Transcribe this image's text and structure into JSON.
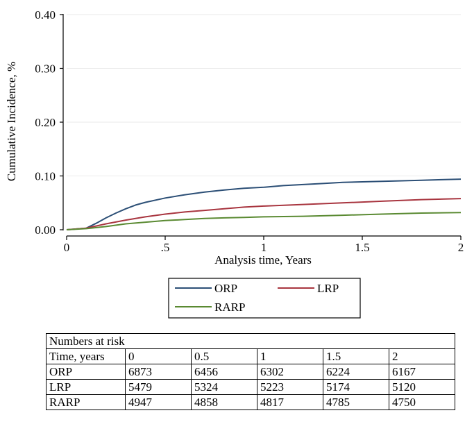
{
  "chart_data": {
    "type": "line",
    "ylabel": "Cumulative Incidence, %",
    "xlabel": "Analysis time, Years",
    "xlim": [
      0,
      2
    ],
    "ylim": [
      0,
      0.4
    ],
    "x_ticks": [
      0,
      0.5,
      1,
      1.5,
      2
    ],
    "x_tick_labels": [
      "0",
      ".5",
      "1",
      "1.5",
      "2"
    ],
    "y_ticks": [
      0,
      0.1,
      0.2,
      0.3,
      0.4
    ],
    "y_tick_labels": [
      "0.00",
      "0.10",
      "0.20",
      "0.30",
      "0.40"
    ],
    "grid": "horizontal",
    "legend_position": "bottom",
    "series": [
      {
        "name": "ORP",
        "color": "#2c4f76",
        "x": [
          0,
          0.1,
          0.15,
          0.2,
          0.25,
          0.3,
          0.35,
          0.4,
          0.5,
          0.6,
          0.7,
          0.8,
          0.9,
          1.0,
          1.1,
          1.2,
          1.3,
          1.4,
          1.5,
          1.6,
          1.7,
          1.8,
          1.9,
          2.0
        ],
        "y": [
          0,
          0.003,
          0.012,
          0.022,
          0.031,
          0.039,
          0.046,
          0.051,
          0.059,
          0.065,
          0.07,
          0.074,
          0.077,
          0.079,
          0.082,
          0.084,
          0.086,
          0.088,
          0.089,
          0.09,
          0.091,
          0.092,
          0.093,
          0.094
        ]
      },
      {
        "name": "LRP",
        "color": "#a8353f",
        "x": [
          0,
          0.1,
          0.2,
          0.3,
          0.4,
          0.5,
          0.6,
          0.7,
          0.8,
          0.9,
          1.0,
          1.2,
          1.4,
          1.6,
          1.8,
          2.0
        ],
        "y": [
          0,
          0.003,
          0.011,
          0.018,
          0.024,
          0.029,
          0.033,
          0.036,
          0.039,
          0.042,
          0.044,
          0.047,
          0.05,
          0.053,
          0.056,
          0.058
        ]
      },
      {
        "name": "RARP",
        "color": "#5a8a32",
        "x": [
          0,
          0.1,
          0.2,
          0.3,
          0.4,
          0.5,
          0.6,
          0.7,
          0.8,
          0.9,
          1.0,
          1.2,
          1.4,
          1.6,
          1.8,
          2.0
        ],
        "y": [
          0,
          0.002,
          0.006,
          0.011,
          0.014,
          0.017,
          0.019,
          0.021,
          0.022,
          0.023,
          0.024,
          0.025,
          0.027,
          0.029,
          0.031,
          0.032
        ]
      }
    ]
  },
  "risk_table": {
    "caption": "Numbers at risk",
    "header": [
      "Time, years",
      "0",
      "0.5",
      "1",
      "1.5",
      "2"
    ],
    "rows": [
      [
        "ORP",
        "6873",
        "6456",
        "6302",
        "6224",
        "6167"
      ],
      [
        "LRP",
        "5479",
        "5324",
        "5223",
        "5174",
        "5120"
      ],
      [
        "RARP",
        "4947",
        "4858",
        "4817",
        "4785",
        "4750"
      ]
    ]
  }
}
